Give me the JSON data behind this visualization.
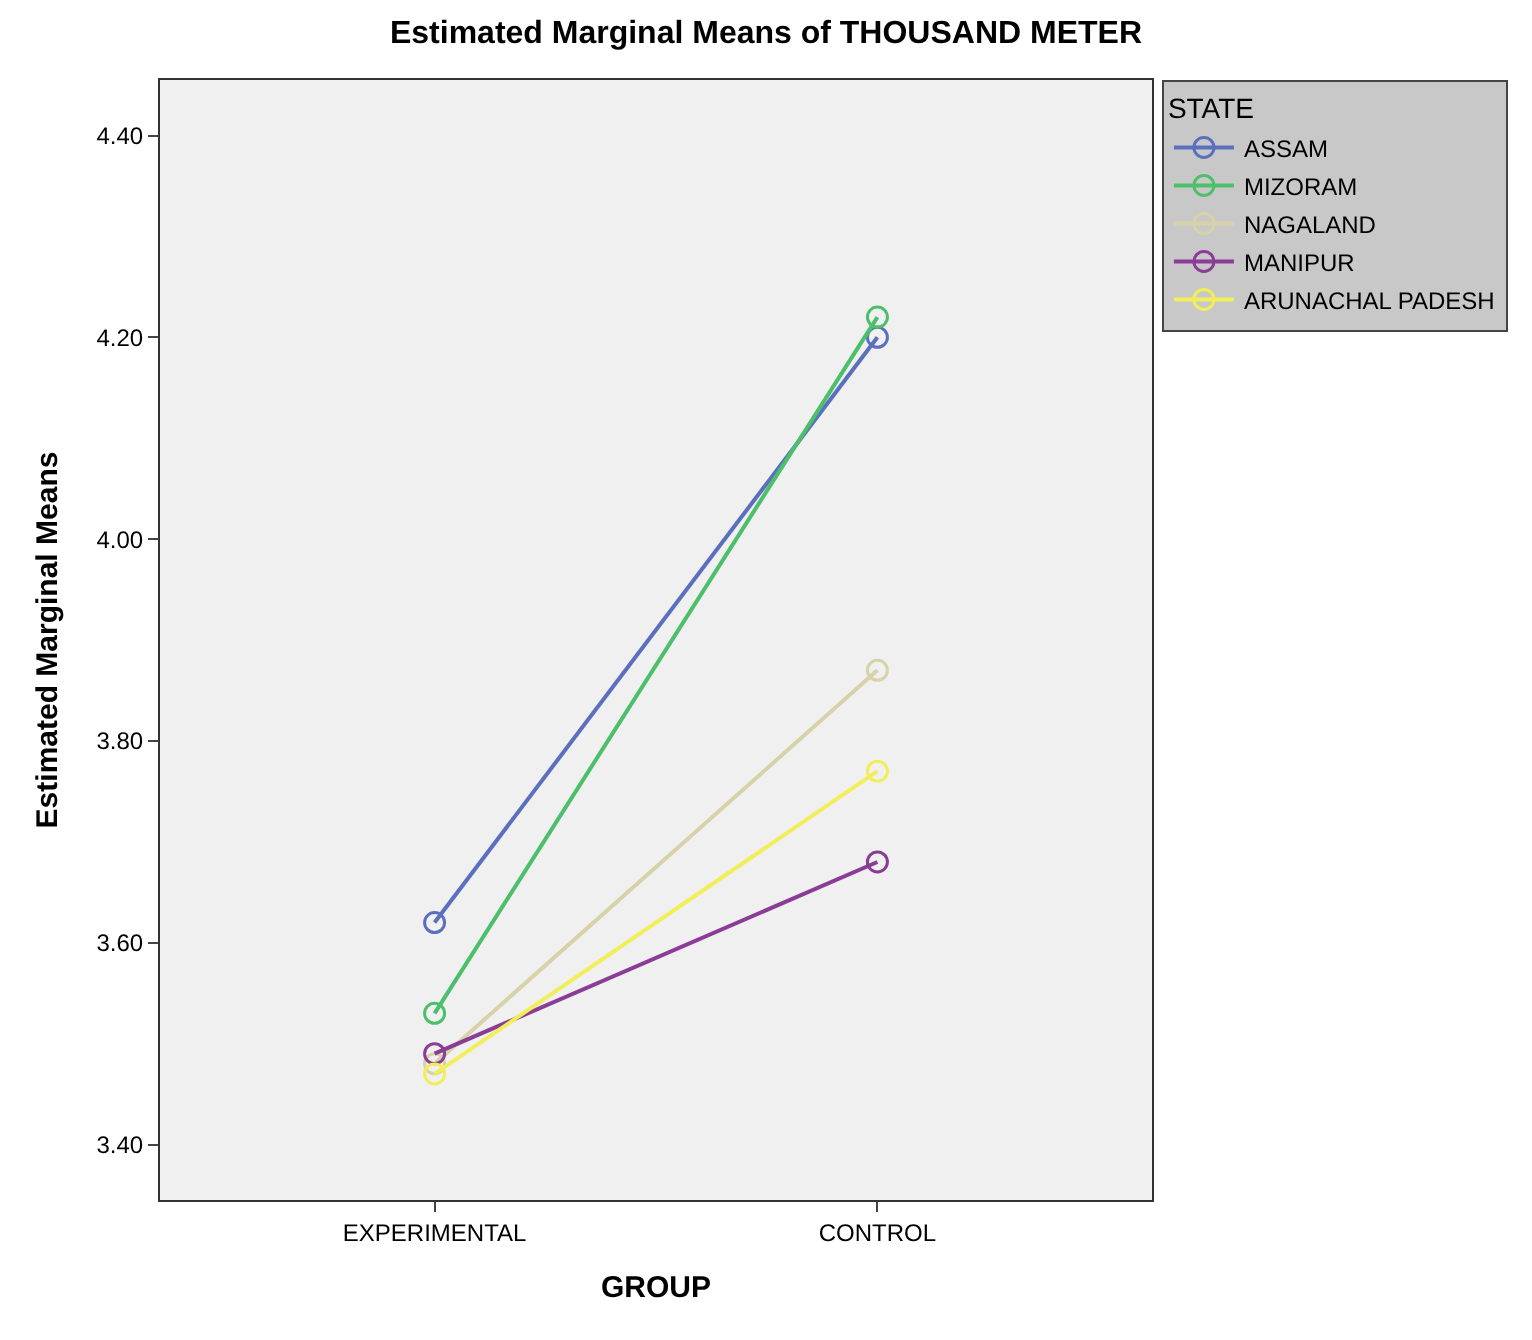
{
  "chart_data": {
    "type": "line",
    "title": "Estimated Marginal Means of THOUSAND METER",
    "xlabel": "GROUP",
    "ylabel": "Estimated Marginal Means",
    "legend_title": "STATE",
    "legend": "top right",
    "marker": "circle",
    "line_style": "solid",
    "grid": false,
    "categories": [
      "EXPERIMENTAL",
      "CONTROL"
    ],
    "ylim": [
      3.345,
      4.455
    ],
    "yticks": [
      {
        "value": 3.4,
        "label": "3.40"
      },
      {
        "value": 3.6,
        "label": "3.60"
      },
      {
        "value": 3.8,
        "label": "3.80"
      },
      {
        "value": 4.0,
        "label": "4.00"
      },
      {
        "value": 4.2,
        "label": "4.20"
      },
      {
        "value": 4.4,
        "label": "4.40"
      }
    ],
    "series": [
      {
        "name": "ASSAM",
        "color": "#5b6fbf",
        "values": [
          3.62,
          4.2
        ]
      },
      {
        "name": "MIZORAM",
        "color": "#4cbf6a",
        "values": [
          3.53,
          4.22
        ]
      },
      {
        "name": "NAGALAND",
        "color": "#d8d2a8",
        "values": [
          3.48,
          3.87
        ]
      },
      {
        "name": "MANIPUR",
        "color": "#8a3c96",
        "values": [
          3.49,
          3.68
        ]
      },
      {
        "name": "ARUNACHAL PADESH",
        "color": "#f2ee5a",
        "values": [
          3.47,
          3.77
        ]
      }
    ]
  }
}
